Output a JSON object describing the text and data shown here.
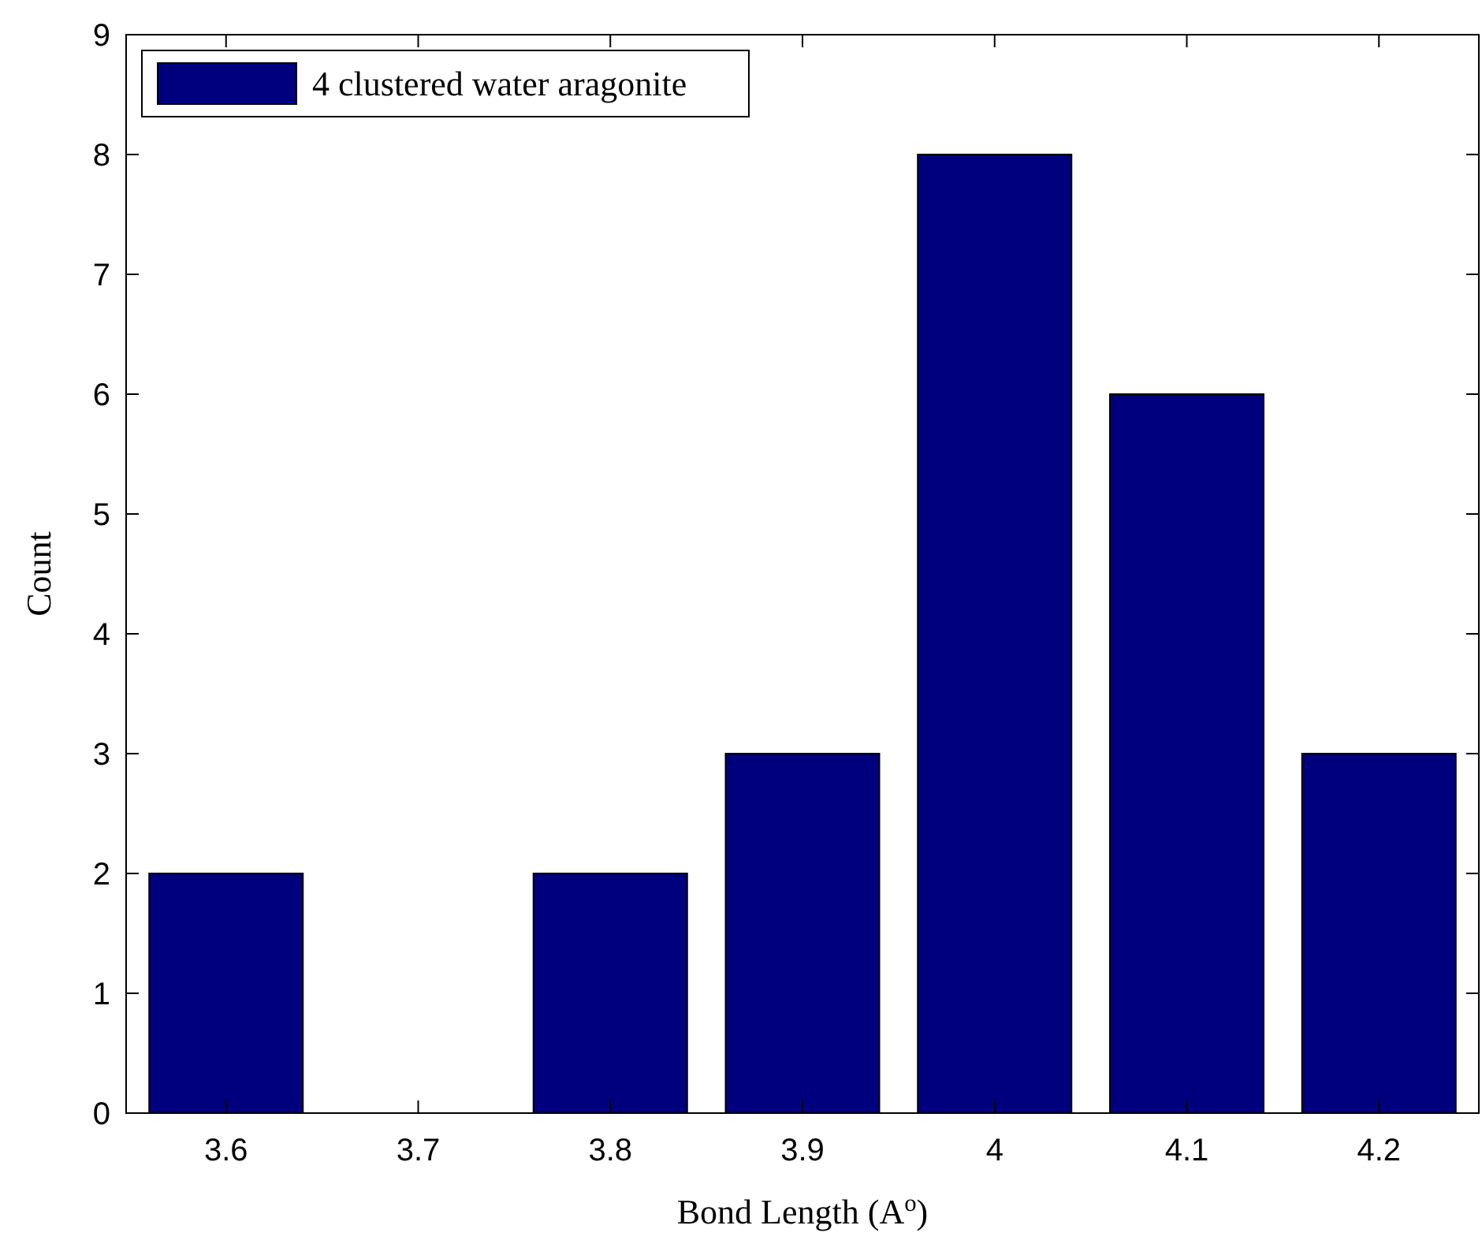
{
  "chart_data": {
    "type": "bar",
    "xlabel": "Bond Length (A$^{o}$)",
    "ylabel": "Count",
    "categories": [
      "3.6",
      "3.7",
      "3.8",
      "3.9",
      "4",
      "4.1",
      "4.2"
    ],
    "series": [
      {
        "name": "4 clustered water aragonite",
        "color": "#00007f",
        "values": [
          2,
          0,
          2,
          3,
          8,
          6,
          3
        ]
      }
    ],
    "ylim": [
      0,
      9
    ],
    "yticks": [
      0,
      1,
      2,
      3,
      4,
      5,
      6,
      7,
      8,
      9
    ],
    "legend": "top left"
  }
}
